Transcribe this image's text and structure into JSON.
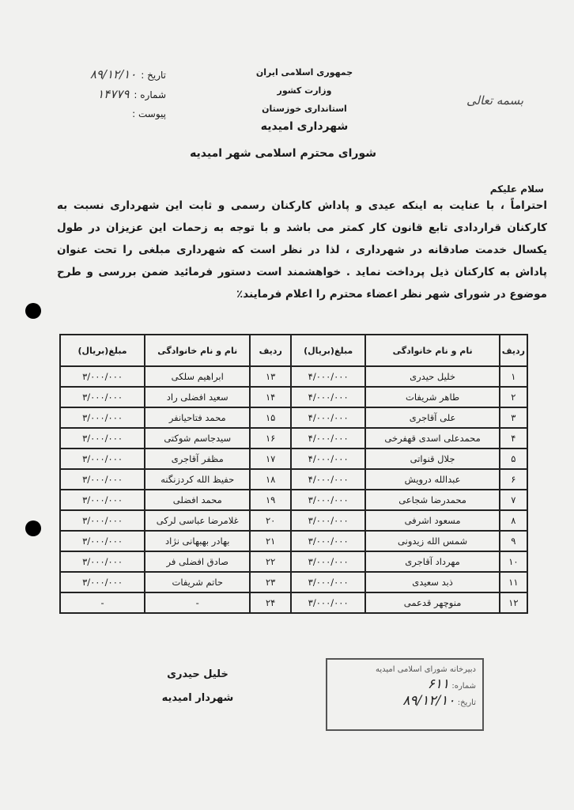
{
  "header": {
    "lines": [
      "جمهوری اسلامی ایران",
      "وزارت کشور",
      "استانداری خوزستان",
      "شهرداری امیدیه"
    ],
    "fields": [
      {
        "label": "تاریخ :",
        "value": "۸۹/۱۲/۱۰"
      },
      {
        "label": "شماره :",
        "value": "۱۴۷۷۹"
      },
      {
        "label": "پیوست :",
        "value": ""
      }
    ],
    "invocation": "بسمه تعالی"
  },
  "letter": {
    "addressee": "شورای محترم اسلامی شهر امیدیه",
    "greeting": "سلام علیکم",
    "body": "احتراماً ، با عنایت به اینکه عیدی و پاداش کارکنان رسمی و ثابت این شهرداری نسبت به کارکنان قراردادی تابع قانون کار کمتر می باشد و با توجه به زحمات این عزیزان در طول یکسال خدمت صادقانه در شهرداری ، لذا در نظر است که شهرداری مبلغی را تحت عنوان پاداش به کارکنان ذیل پرداخت نماید . خواهشمند است دستور فرمائید ضمن بررسی و طرح موضوع در شورای شهر نظر اعضاء محترم را اعلام فرمایند٪"
  },
  "table": {
    "headers": [
      "ردیف",
      "نام و نام خانوادگی",
      "مبلغ(بریال)",
      "ردیف",
      "نام و نام خانوادگی",
      "مبلغ(بریال)"
    ],
    "rows": [
      [
        "۱",
        "خلیل حیدری",
        "۴/۰۰۰/۰۰۰",
        "۱۳",
        "ابراهیم سلکی",
        "۳/۰۰۰/۰۰۰"
      ],
      [
        "۲",
        "طاهر شریفات",
        "۴/۰۰۰/۰۰۰",
        "۱۴",
        "سعید افضلی راد",
        "۳/۰۰۰/۰۰۰"
      ],
      [
        "۳",
        "علی آقاجری",
        "۴/۰۰۰/۰۰۰",
        "۱۵",
        "محمد فتاحیانفر",
        "۳/۰۰۰/۰۰۰"
      ],
      [
        "۴",
        "محمدعلی اسدی قهفرخی",
        "۴/۰۰۰/۰۰۰",
        "۱۶",
        "سیدجاسم شوکتی",
        "۳/۰۰۰/۰۰۰"
      ],
      [
        "۵",
        "جلال قنواتی",
        "۴/۰۰۰/۰۰۰",
        "۱۷",
        "مظفر آقاجری",
        "۳/۰۰۰/۰۰۰"
      ],
      [
        "۶",
        "عبدالله درویش",
        "۴/۰۰۰/۰۰۰",
        "۱۸",
        "حفیظ الله کردزنگنه",
        "۳/۰۰۰/۰۰۰"
      ],
      [
        "۷",
        "محمدرضا شجاعی",
        "۳/۰۰۰/۰۰۰",
        "۱۹",
        "محمد افضلی",
        "۳/۰۰۰/۰۰۰"
      ],
      [
        "۸",
        "مسعود اشرفی",
        "۳/۰۰۰/۰۰۰",
        "۲۰",
        "غلامرضا عباسی لرکی",
        "۳/۰۰۰/۰۰۰"
      ],
      [
        "۹",
        "شمس الله زیدونی",
        "۳/۰۰۰/۰۰۰",
        "۲۱",
        "بهادر بهبهانی نژاد",
        "۳/۰۰۰/۰۰۰"
      ],
      [
        "۱۰",
        "مهرداد آقاجری",
        "۳/۰۰۰/۰۰۰",
        "۲۲",
        "صادق افضلی فر",
        "۳/۰۰۰/۰۰۰"
      ],
      [
        "۱۱",
        "ذبد سعیدی",
        "۳/۰۰۰/۰۰۰",
        "۲۳",
        "حاتم شریفات",
        "۳/۰۰۰/۰۰۰"
      ],
      [
        "۱۲",
        "منوچهر قدعمی",
        "۳/۰۰۰/۰۰۰",
        "۲۴",
        "-",
        "-"
      ]
    ]
  },
  "signature": {
    "name": "خلیل حیدری",
    "title": "شهردار امیدیه"
  },
  "stamp": {
    "title": "دبیرخانه شورای اسلامی امیدیه",
    "number_label": "شماره:",
    "number": "۶۱۱",
    "date_label": "تاریخ:",
    "date": "۸۹/۱۲/۱۰"
  }
}
